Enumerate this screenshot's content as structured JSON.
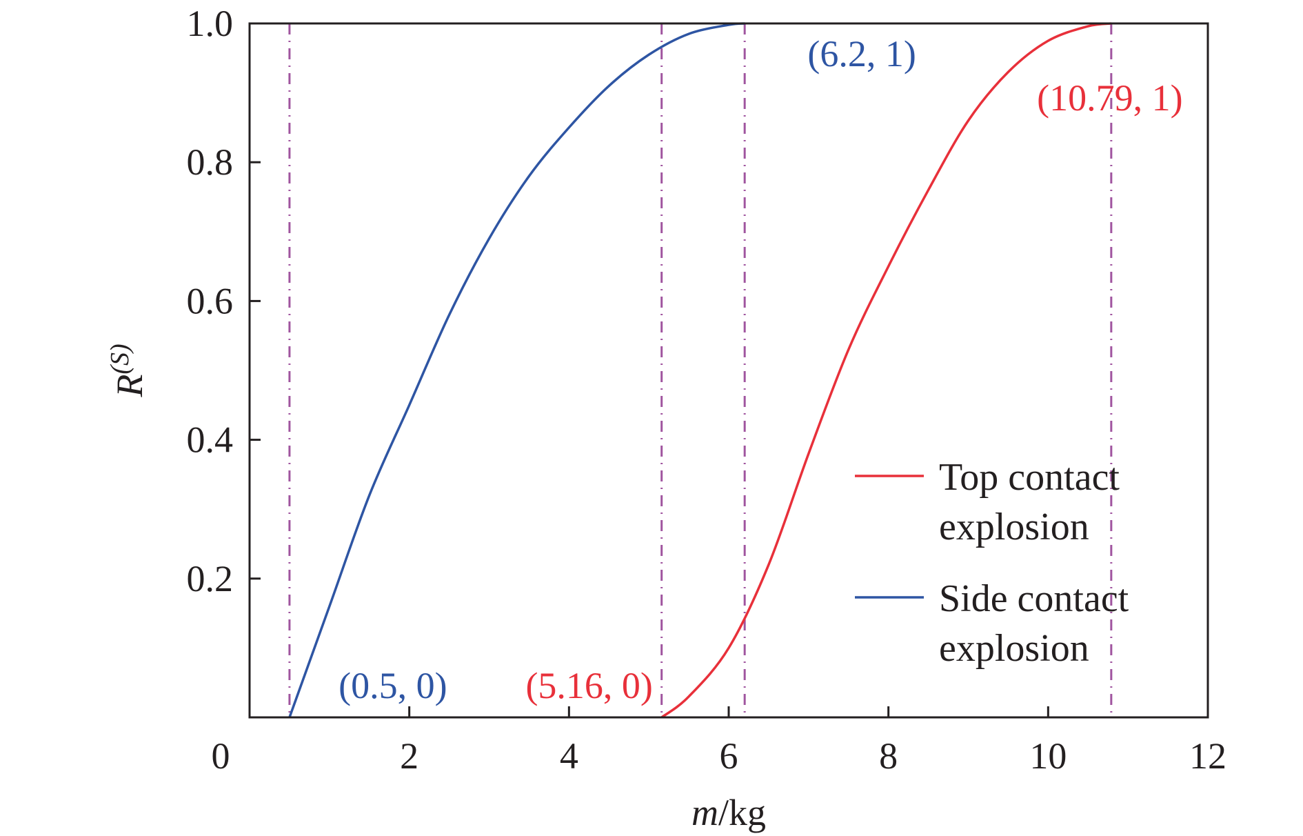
{
  "chart_data": {
    "type": "line",
    "xlabel": {
      "italic": "m",
      "rest": "/kg"
    },
    "ylabel": {
      "base": "R",
      "sup": "(S)"
    },
    "xlim": [
      0,
      12
    ],
    "ylim": [
      0,
      1.0
    ],
    "x_ticks": [
      {
        "value": 0,
        "label": "0"
      },
      {
        "value": 2,
        "label": "2"
      },
      {
        "value": 4,
        "label": "4"
      },
      {
        "value": 6,
        "label": "6"
      },
      {
        "value": 8,
        "label": "8"
      },
      {
        "value": 10,
        "label": "10"
      },
      {
        "value": 12,
        "label": "12"
      }
    ],
    "y_ticks": [
      {
        "value": 0.2,
        "label": "0.2"
      },
      {
        "value": 0.4,
        "label": "0.4"
      },
      {
        "value": 0.6,
        "label": "0.6"
      },
      {
        "value": 0.8,
        "label": "0.8"
      },
      {
        "value": 1.0,
        "label": "1.0"
      }
    ],
    "grid": false,
    "legend_position": "right",
    "series": [
      {
        "name": "Top contact explosion",
        "legend_lines": [
          "Top contact",
          "explosion"
        ],
        "color": "#e8303a",
        "x": [
          5.16,
          5.5,
          6.0,
          6.5,
          7.0,
          7.5,
          8.0,
          8.5,
          9.0,
          9.5,
          10.0,
          10.5,
          10.79
        ],
        "y": [
          0.0,
          0.03,
          0.1,
          0.22,
          0.38,
          0.53,
          0.65,
          0.76,
          0.86,
          0.93,
          0.975,
          0.996,
          1.0
        ]
      },
      {
        "name": "Side contact explosion",
        "legend_lines": [
          "Side contact",
          "explosion"
        ],
        "color": "#2e55a3",
        "x": [
          0.5,
          1.0,
          1.5,
          2.0,
          2.5,
          3.0,
          3.5,
          4.0,
          4.5,
          5.0,
          5.5,
          6.0,
          6.2
        ],
        "y": [
          0.0,
          0.16,
          0.32,
          0.45,
          0.58,
          0.69,
          0.78,
          0.85,
          0.91,
          0.955,
          0.985,
          0.998,
          1.0
        ]
      }
    ],
    "vlines": [
      0.5,
      5.16,
      6.2,
      10.79
    ],
    "vline_color": "#a0559f",
    "annotations": [
      {
        "text": "(0.5, 0)",
        "x": 0.5,
        "y": 0,
        "color": "#2e55a3"
      },
      {
        "text": "(5.16, 0)",
        "x": 5.16,
        "y": 0,
        "color": "#e8303a"
      },
      {
        "text": "(6.2, 1)",
        "x": 6.2,
        "y": 1,
        "color": "#2e55a3"
      },
      {
        "text": "(10.79, 1)",
        "x": 10.79,
        "y": 1,
        "color": "#e8303a"
      }
    ]
  }
}
